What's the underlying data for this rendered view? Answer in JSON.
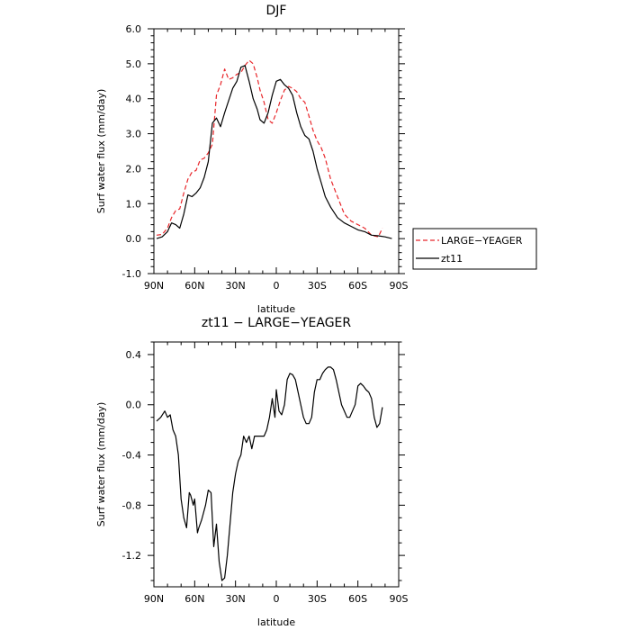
{
  "chart_data": [
    {
      "type": "line",
      "title": "DJF",
      "xlabel": "latitude",
      "ylabel": "Surf water flux (mm/day)",
      "xlim": [
        -90,
        90
      ],
      "ylim": [
        -1.0,
        6.0
      ],
      "x_ticks": [
        -90,
        -60,
        -30,
        0,
        30,
        60,
        90
      ],
      "x_tick_labels": [
        "90N",
        "60N",
        "30N",
        "0",
        "30S",
        "60S",
        "90S"
      ],
      "y_ticks": [
        -1.0,
        0.0,
        1.0,
        2.0,
        3.0,
        4.0,
        5.0,
        6.0
      ],
      "y_tick_labels": [
        "-1.0",
        "0.0",
        "1.0",
        "2.0",
        "3.0",
        "4.0",
        "5.0",
        "6.0"
      ],
      "legend": "right",
      "series": [
        {
          "name": "LARGE−YEAGER",
          "color": "#e8262a",
          "dash": "dashed",
          "x": [
            -88,
            -84,
            -80,
            -77,
            -74,
            -71,
            -68,
            -65,
            -62,
            -59,
            -56,
            -53,
            -50,
            -47,
            -44,
            -41,
            -38,
            -35,
            -32,
            -29,
            -26,
            -23,
            -20,
            -17,
            -14,
            -12,
            -9,
            -6,
            -3,
            0,
            3,
            6,
            9,
            12,
            15,
            18,
            21,
            24,
            27,
            30,
            33,
            36,
            40,
            45,
            50,
            55,
            60,
            65,
            70,
            75,
            78
          ],
          "y": [
            0.1,
            0.12,
            0.3,
            0.6,
            0.8,
            0.85,
            1.3,
            1.7,
            1.9,
            1.95,
            2.25,
            2.3,
            2.45,
            2.7,
            4.1,
            4.4,
            4.85,
            4.55,
            4.6,
            4.7,
            4.75,
            4.95,
            5.1,
            5.0,
            4.6,
            4.25,
            3.9,
            3.4,
            3.3,
            3.6,
            3.95,
            4.25,
            4.35,
            4.3,
            4.2,
            4.0,
            3.9,
            3.5,
            3.1,
            2.8,
            2.6,
            2.3,
            1.7,
            1.2,
            0.7,
            0.5,
            0.4,
            0.3,
            0.1,
            0.05,
            0.3
          ]
        },
        {
          "name": "zt11",
          "color": "#000000",
          "dash": "solid",
          "x": [
            -88,
            -84,
            -80,
            -77,
            -74,
            -71,
            -68,
            -65,
            -62,
            -59,
            -56,
            -53,
            -50,
            -47,
            -44,
            -41,
            -38,
            -35,
            -32,
            -29,
            -26,
            -23,
            -20,
            -17,
            -14,
            -12,
            -9,
            -6,
            -3,
            0,
            3,
            6,
            9,
            12,
            15,
            18,
            21,
            24,
            27,
            30,
            33,
            36,
            40,
            45,
            50,
            55,
            60,
            65,
            70,
            75,
            80,
            85
          ],
          "y": [
            0.0,
            0.05,
            0.2,
            0.45,
            0.4,
            0.3,
            0.7,
            1.25,
            1.2,
            1.3,
            1.45,
            1.75,
            2.2,
            3.3,
            3.45,
            3.2,
            3.6,
            3.95,
            4.3,
            4.5,
            4.9,
            4.95,
            4.5,
            4.0,
            3.7,
            3.4,
            3.3,
            3.6,
            4.1,
            4.5,
            4.55,
            4.4,
            4.3,
            4.1,
            3.6,
            3.2,
            2.95,
            2.85,
            2.5,
            2.0,
            1.6,
            1.2,
            0.9,
            0.6,
            0.45,
            0.35,
            0.25,
            0.2,
            0.1,
            0.08,
            0.05,
            0.0
          ]
        }
      ]
    },
    {
      "type": "line",
      "title": "zt11 − LARGE−YEAGER",
      "xlabel": "latitude",
      "ylabel": "Surf water flux (mm/day)",
      "xlim": [
        -90,
        90
      ],
      "ylim": [
        -1.45,
        0.5
      ],
      "x_ticks": [
        -90,
        -60,
        -30,
        0,
        30,
        60,
        90
      ],
      "x_tick_labels": [
        "90N",
        "60N",
        "30N",
        "0",
        "30S",
        "60S",
        "90S"
      ],
      "y_ticks": [
        -1.2,
        -0.8,
        -0.4,
        0.0,
        0.4
      ],
      "y_tick_labels": [
        "-1.2",
        "-0.8",
        "-0.4",
        "0.0",
        "0.4"
      ],
      "series": [
        {
          "name": "",
          "color": "#000000",
          "dash": "solid",
          "x": [
            -88,
            -85,
            -82,
            -80,
            -78,
            -76,
            -74,
            -72,
            -70,
            -68,
            -66,
            -64,
            -63,
            -61,
            -60,
            -58,
            -57,
            -55,
            -54,
            -52,
            -50,
            -48,
            -46,
            -44,
            -42,
            -40,
            -38,
            -36,
            -34,
            -32,
            -30,
            -28,
            -26,
            -24,
            -22,
            -20,
            -18,
            -16,
            -14,
            -13,
            -11,
            -9,
            -7,
            -5,
            -3,
            -1,
            0,
            2,
            4,
            6,
            8,
            10,
            12,
            14,
            16,
            18,
            20,
            22,
            24,
            26,
            28,
            30,
            32,
            34,
            36,
            38,
            40,
            42,
            44,
            46,
            48,
            50,
            52,
            54,
            56,
            58,
            60,
            62,
            64,
            66,
            68,
            70,
            72,
            74,
            76,
            78
          ],
          "y": [
            -0.13,
            -0.1,
            -0.05,
            -0.1,
            -0.08,
            -0.2,
            -0.25,
            -0.4,
            -0.75,
            -0.9,
            -0.98,
            -0.7,
            -0.72,
            -0.8,
            -0.75,
            -1.02,
            -0.98,
            -0.92,
            -0.88,
            -0.8,
            -0.68,
            -0.7,
            -1.13,
            -0.95,
            -1.25,
            -1.4,
            -1.38,
            -1.2,
            -0.95,
            -0.7,
            -0.55,
            -0.45,
            -0.4,
            -0.25,
            -0.3,
            -0.25,
            -0.35,
            -0.25,
            -0.25,
            -0.25,
            -0.25,
            -0.25,
            -0.2,
            -0.1,
            0.05,
            -0.1,
            0.12,
            -0.05,
            -0.08,
            0.0,
            0.2,
            0.25,
            0.24,
            0.2,
            0.1,
            0.0,
            -0.1,
            -0.15,
            -0.15,
            -0.1,
            0.1,
            0.2,
            0.2,
            0.25,
            0.28,
            0.3,
            0.3,
            0.28,
            0.2,
            0.1,
            0.0,
            -0.05,
            -0.1,
            -0.1,
            -0.05,
            0.0,
            0.15,
            0.17,
            0.15,
            0.12,
            0.1,
            0.05,
            -0.1,
            -0.18,
            -0.15,
            -0.02
          ]
        }
      ]
    }
  ]
}
